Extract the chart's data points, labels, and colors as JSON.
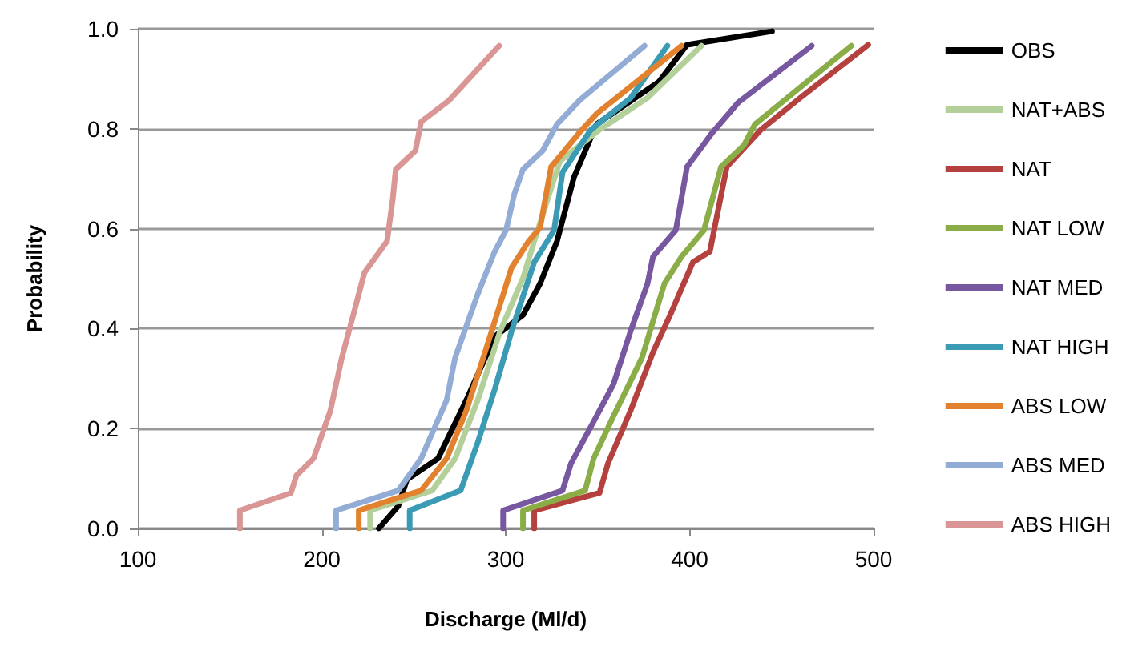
{
  "chart_data": {
    "type": "line",
    "xlabel": "Discharge (Ml/d)",
    "ylabel": "Probability",
    "xlim": [
      100,
      500
    ],
    "xticks": [
      100,
      200,
      300,
      400,
      500
    ],
    "ylim": [
      0,
      1
    ],
    "yticks": [
      {
        "value": 0,
        "label": "0.0"
      },
      {
        "value": 0.2,
        "label": "0.2"
      },
      {
        "value": 0.4,
        "label": "0.4"
      },
      {
        "value": 0.6,
        "label": "0.6"
      },
      {
        "value": 0.8,
        "label": "0.8"
      },
      {
        "value": 1,
        "label": "1.0"
      }
    ],
    "grid": "y",
    "legend": "right",
    "marker": "none",
    "line_style": "solid",
    "series": [
      {
        "name": "OBS",
        "color": "#000000",
        "x": [
          231,
          241.6,
          246.3,
          263.2,
          278.6,
          294,
          309.4,
          318.7,
          327.9,
          337.1,
          349.4,
          383.3,
          398.6,
          444.8
        ],
        "values": [
          0,
          0.045,
          0.098,
          0.14,
          0.257,
          0.384,
          0.427,
          0.49,
          0.575,
          0.703,
          0.809,
          0.894,
          0.968,
          0.995
        ]
      },
      {
        "name": "NAT+ABS",
        "color": "#b3d09a",
        "x": [
          226.3,
          226.3,
          260.1,
          272.5,
          284.8,
          297,
          309.4,
          315.5,
          329.4,
          351,
          377.1,
          406.4
        ],
        "values": [
          0,
          0.036,
          0.076,
          0.14,
          0.257,
          0.395,
          0.501,
          0.575,
          0.735,
          0.798,
          0.862,
          0.966
        ]
      },
      {
        "name": "NAT",
        "color": "#b5413e",
        "x": [
          315.5,
          315.5,
          351,
          355.6,
          367.9,
          380.1,
          389.4,
          401.8,
          411,
          420.2,
          438.7,
          460.2,
          497.1
        ],
        "values": [
          0,
          0.036,
          0.071,
          0.13,
          0.236,
          0.353,
          0.427,
          0.533,
          0.554,
          0.724,
          0.798,
          0.862,
          0.968
        ]
      },
      {
        "name": "NAT LOW",
        "color": "#8aad48",
        "x": [
          309.4,
          309.4,
          343.2,
          347.8,
          358.6,
          374.1,
          386.3,
          395.6,
          407.8,
          417.1,
          429.5,
          435.5,
          487.9
        ],
        "values": [
          0,
          0.036,
          0.076,
          0.14,
          0.225,
          0.342,
          0.49,
          0.544,
          0.597,
          0.724,
          0.767,
          0.809,
          0.966
        ]
      },
      {
        "name": "NAT MED",
        "color": "#7657a0",
        "x": [
          298.6,
          298.6,
          330.9,
          335.5,
          349.4,
          358.6,
          367.9,
          377.1,
          380.1,
          392.5,
          398.6,
          412.5,
          426.3,
          466.4
        ],
        "values": [
          0,
          0.036,
          0.076,
          0.13,
          0.225,
          0.289,
          0.395,
          0.49,
          0.544,
          0.597,
          0.724,
          0.793,
          0.852,
          0.966
        ]
      },
      {
        "name": "NAT HIGH",
        "color": "#3b9bb5",
        "x": [
          247.8,
          247.8,
          275.5,
          284.8,
          294,
          303.2,
          315.5,
          326.3,
          330.9,
          346.3,
          368,
          387.9
        ],
        "values": [
          0,
          0.036,
          0.076,
          0.172,
          0.278,
          0.395,
          0.533,
          0.597,
          0.713,
          0.798,
          0.862,
          0.966
        ]
      },
      {
        "name": "ABS LOW",
        "color": "#e2822f",
        "x": [
          220.1,
          220.1,
          254,
          267.9,
          278.6,
          292.4,
          303.2,
          312.5,
          318.7,
          324.7,
          340.2,
          349.4,
          395.6
        ],
        "values": [
          0,
          0.036,
          0.076,
          0.14,
          0.236,
          0.395,
          0.522,
          0.575,
          0.602,
          0.724,
          0.793,
          0.83,
          0.966
        ]
      },
      {
        "name": "ABS MED",
        "color": "#93acd6",
        "x": [
          207.8,
          207.8,
          241.6,
          254,
          267.9,
          272.5,
          284.8,
          294,
          300.2,
          304.8,
          309.4,
          320.1,
          327.9,
          340.2,
          375.5
        ],
        "values": [
          0,
          0.036,
          0.076,
          0.14,
          0.257,
          0.342,
          0.469,
          0.554,
          0.597,
          0.671,
          0.719,
          0.756,
          0.809,
          0.857,
          0.966
        ]
      },
      {
        "name": "ABS HIGH",
        "color": "#d99694",
        "x": [
          155.5,
          155.5,
          183.2,
          186.2,
          195.5,
          204.7,
          210.9,
          217.1,
          223.2,
          235.5,
          238.6,
          240.2,
          250.9,
          254,
          269.3,
          296.5
        ],
        "values": [
          0,
          0.036,
          0.071,
          0.106,
          0.14,
          0.236,
          0.342,
          0.427,
          0.512,
          0.575,
          0.66,
          0.719,
          0.756,
          0.814,
          0.857,
          0.966
        ]
      }
    ]
  }
}
